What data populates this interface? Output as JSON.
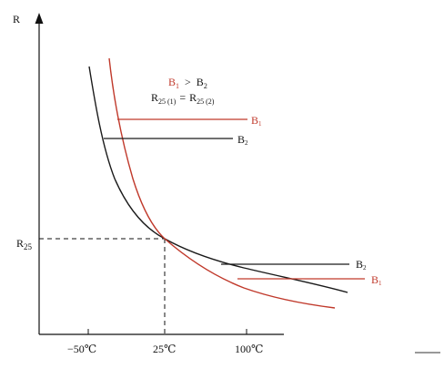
{
  "axis": {
    "y_label": "R",
    "y_tick_label": "R",
    "y_tick_sub": "25",
    "x_ticks": [
      "−50℃",
      "25℃",
      "100℃"
    ]
  },
  "annotations": {
    "condition_b1": "B",
    "condition_b1_sub": "1",
    "condition_gt": ">",
    "condition_b2": "B",
    "condition_b2_sub": "2",
    "r_left": "R",
    "r_left_sub": "25 (1)",
    "r_eq": "=",
    "r_right": "R",
    "r_right_sub": "25 (2)"
  },
  "labels": {
    "b1_main": "B",
    "b1_main_sub": "1",
    "b2_main": "B",
    "b2_main_sub": "2",
    "b2_low": "B",
    "b2_low_sub": "2",
    "b1_low": "B",
    "b1_low_sub": "1"
  },
  "colors": {
    "b1": "#c0392b",
    "b2": "#1a1a1a",
    "axis": "#111111"
  }
}
